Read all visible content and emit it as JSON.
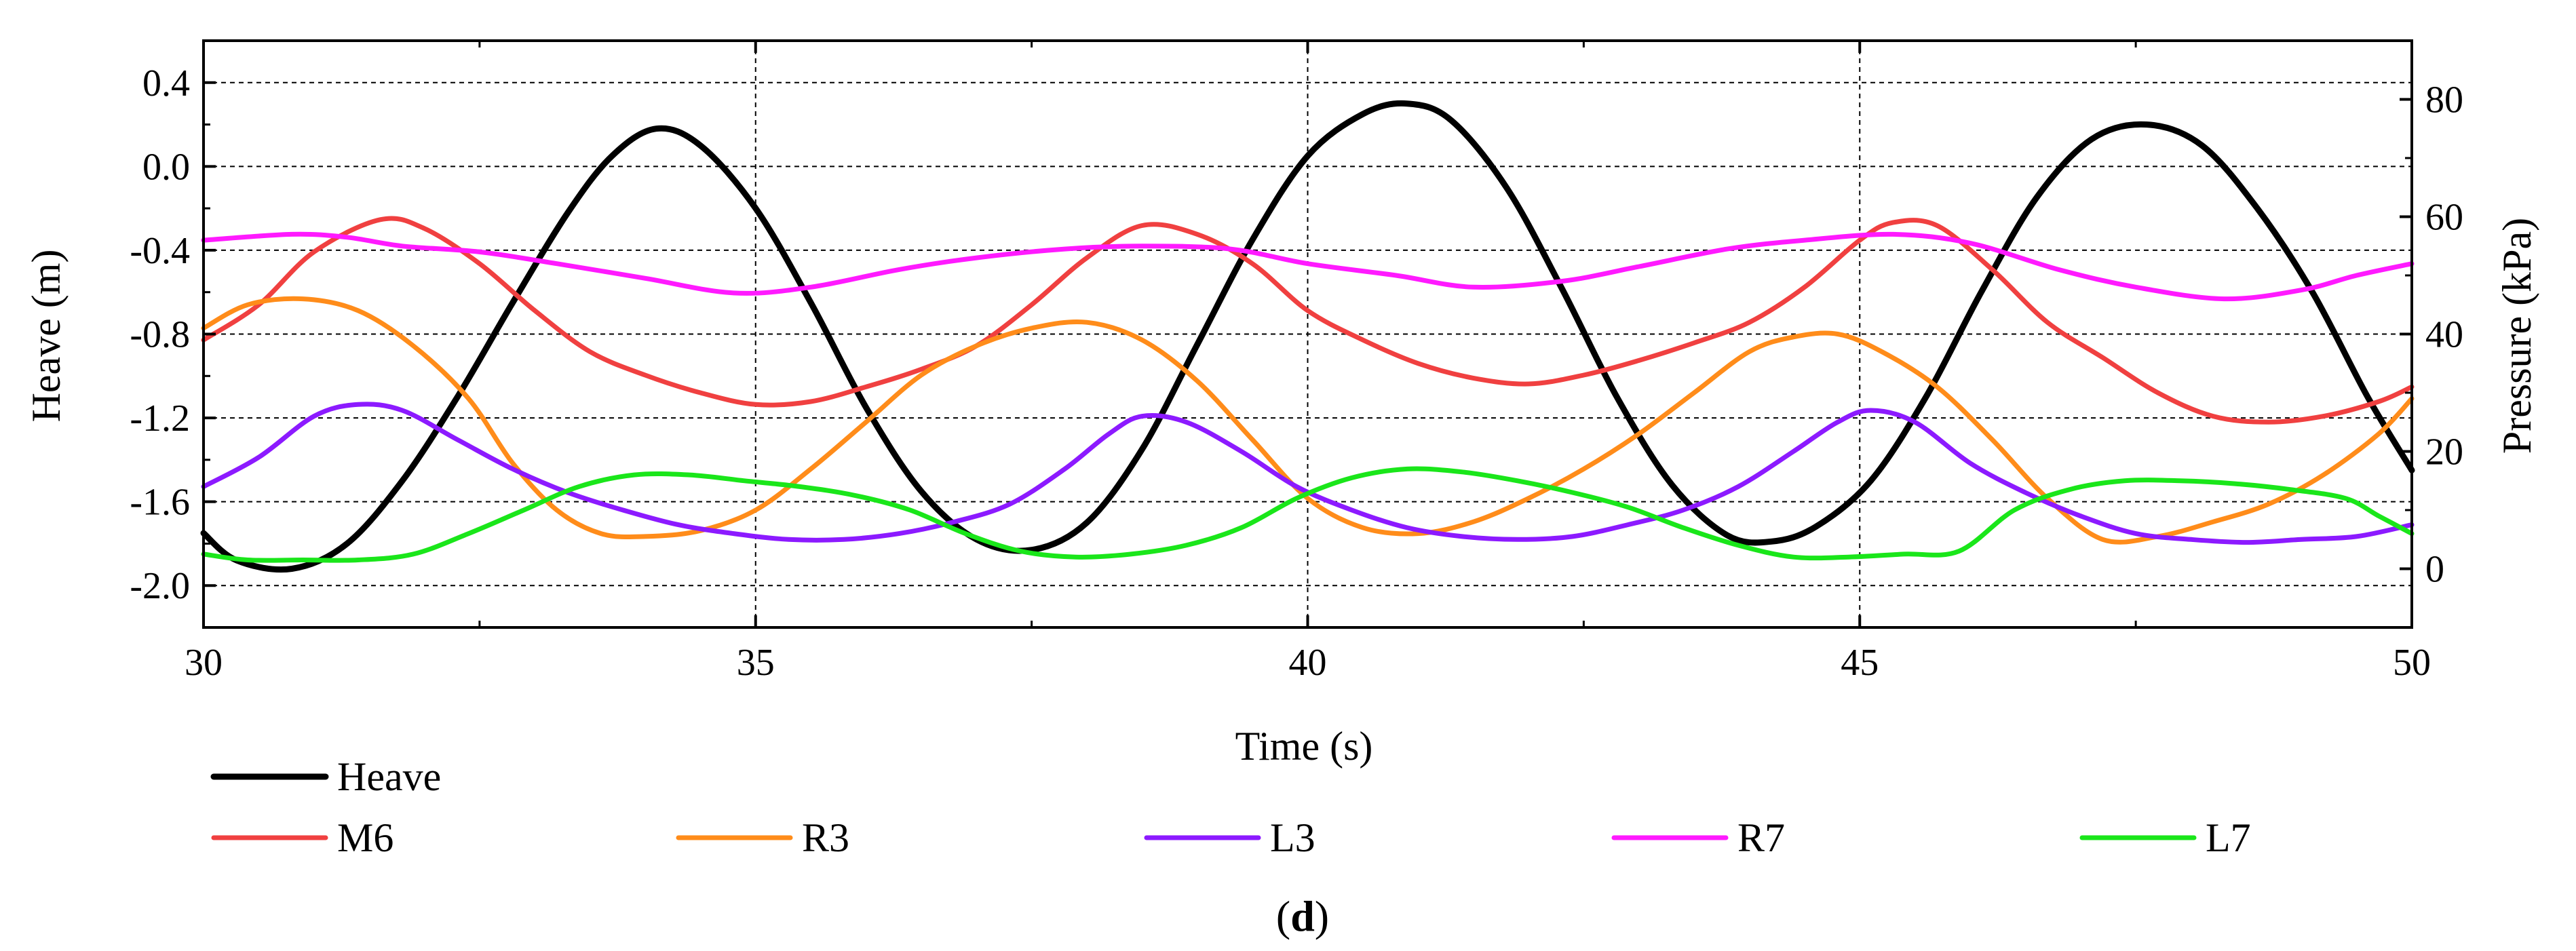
{
  "chart_data": {
    "type": "line",
    "panel_label": {
      "open": "(",
      "letter": "d",
      "close": ")"
    },
    "xlabel": "Time (s)",
    "ylabel_left": "Heave (m)",
    "ylabel_right": "Pressure (kPa)",
    "xlim": [
      30,
      50
    ],
    "ylim_left": [
      -2.2,
      0.6
    ],
    "ylim_right": [
      -10,
      90
    ],
    "x_ticks": [
      30,
      35,
      40,
      45,
      50
    ],
    "x_tick_labels": [
      "30",
      "35",
      "40",
      "45",
      "50"
    ],
    "y_left_ticks": [
      0.4,
      0.0,
      -0.4,
      -0.8,
      -1.2,
      -1.6,
      -2.0
    ],
    "y_left_tick_labels": [
      "0.4",
      "0.0",
      "-0.4",
      "-0.8",
      "-1.2",
      "-1.6",
      "-2.0"
    ],
    "y_right_ticks": [
      80,
      60,
      40,
      20,
      0
    ],
    "y_right_tick_labels": [
      "80",
      "60",
      "40",
      "20",
      "0"
    ],
    "grid": true,
    "legend_position": "bottom",
    "series": [
      {
        "name": "Heave",
        "axis": "left",
        "color": "#000000",
        "x": [
          30,
          30.3,
          30.8,
          31.3,
          31.8,
          32.3,
          32.8,
          33.3,
          33.7,
          34.1,
          34.5,
          35.0,
          35.5,
          36.0,
          36.5,
          37.0,
          37.5,
          38.0,
          38.5,
          39.0,
          39.5,
          40.0,
          40.5,
          40.9,
          41.3,
          41.8,
          42.3,
          42.8,
          43.3,
          43.8,
          44.2,
          44.6,
          45.1,
          45.6,
          46.1,
          46.6,
          47.1,
          47.6,
          48.1,
          48.6,
          49.1,
          49.6,
          50.0
        ],
        "y": [
          -1.75,
          -1.88,
          -1.92,
          -1.8,
          -1.5,
          -1.1,
          -0.65,
          -0.22,
          0.05,
          0.18,
          0.1,
          -0.2,
          -0.65,
          -1.15,
          -1.55,
          -1.78,
          -1.83,
          -1.7,
          -1.35,
          -0.85,
          -0.35,
          0.05,
          0.25,
          0.3,
          0.22,
          -0.1,
          -0.58,
          -1.1,
          -1.52,
          -1.76,
          -1.79,
          -1.72,
          -1.5,
          -1.1,
          -0.6,
          -0.15,
          0.13,
          0.2,
          0.1,
          -0.2,
          -0.6,
          -1.1,
          -1.45
        ]
      },
      {
        "name": "M6",
        "axis": "right",
        "color": "#f04040",
        "x": [
          30,
          30.5,
          31.0,
          31.6,
          32.0,
          32.5,
          33.0,
          33.5,
          34.0,
          34.5,
          35.0,
          35.5,
          36.0,
          36.5,
          37.0,
          37.5,
          38.0,
          38.5,
          39.0,
          39.5,
          40.0,
          40.5,
          41.0,
          41.5,
          42.0,
          42.5,
          43.0,
          43.5,
          44.0,
          44.5,
          45.0,
          45.3,
          45.7,
          46.2,
          46.7,
          47.2,
          47.7,
          48.2,
          48.7,
          49.2,
          49.7,
          50.0
        ],
        "y": [
          39,
          45,
          54,
          59.5,
          58,
          52,
          44,
          37,
          33,
          30,
          28,
          28.5,
          31,
          34,
          38,
          45,
          53,
          58.5,
          57,
          52,
          44,
          39,
          35,
          32.5,
          31.5,
          33,
          35.5,
          38.5,
          42,
          48,
          56,
          59,
          58.5,
          51,
          42,
          36,
          30,
          26,
          25,
          26,
          28.5,
          31
        ]
      },
      {
        "name": "R3",
        "axis": "right",
        "color": "#ff8c1a",
        "x": [
          30,
          30.4,
          30.9,
          31.4,
          31.9,
          32.4,
          32.8,
          33.2,
          33.6,
          34.0,
          34.5,
          35.0,
          35.5,
          36.0,
          36.5,
          37.0,
          37.5,
          38.0,
          38.5,
          39.0,
          39.5,
          40.0,
          40.5,
          41.0,
          41.5,
          42.0,
          42.5,
          43.0,
          43.5,
          44.0,
          44.4,
          44.8,
          45.2,
          45.7,
          46.2,
          46.7,
          47.2,
          47.7,
          48.2,
          48.7,
          49.2,
          49.7,
          50.0
        ],
        "y": [
          41,
          45,
          46,
          44,
          38,
          29,
          18,
          10,
          6,
          5.5,
          6.5,
          10,
          17,
          25,
          33,
          38,
          41,
          42,
          39,
          32,
          22,
          12,
          7,
          6,
          8,
          12,
          17,
          23,
          30,
          37,
          39.5,
          40,
          37,
          31,
          22,
          12,
          5,
          5.5,
          8,
          11,
          16,
          23,
          29
        ]
      },
      {
        "name": "L3",
        "axis": "right",
        "color": "#8c1aff",
        "x": [
          30,
          30.5,
          31.0,
          31.4,
          31.8,
          32.3,
          32.8,
          33.3,
          33.8,
          34.3,
          34.8,
          35.3,
          35.8,
          36.3,
          36.8,
          37.3,
          37.8,
          38.2,
          38.5,
          38.9,
          39.4,
          39.9,
          40.4,
          40.9,
          41.4,
          41.9,
          42.4,
          42.9,
          43.4,
          43.9,
          44.4,
          44.8,
          45.1,
          45.5,
          46.0,
          46.5,
          47.0,
          47.5,
          48.0,
          48.5,
          49.0,
          49.5,
          50.0
        ],
        "y": [
          14,
          19,
          26,
          28,
          27,
          22,
          17,
          13,
          10,
          7.5,
          6,
          5,
          5,
          6,
          8,
          11,
          17,
          23,
          26,
          25,
          20,
          14,
          10,
          7,
          5.5,
          5,
          5.5,
          7.5,
          10,
          14,
          20,
          25,
          27,
          25,
          18,
          13,
          9,
          6,
          5,
          4.5,
          5,
          5.5,
          7.5
        ]
      },
      {
        "name": "R7",
        "axis": "right",
        "color": "#ff1aff",
        "x": [
          30,
          30.8,
          31.3,
          31.8,
          32.5,
          33.2,
          34.0,
          34.8,
          35.5,
          36.3,
          37.0,
          37.8,
          38.5,
          39.3,
          40.0,
          40.8,
          41.5,
          42.3,
          43.0,
          43.8,
          44.5,
          45.3,
          46.0,
          46.8,
          47.5,
          48.3,
          49.0,
          49.5,
          50.0
        ],
        "y": [
          56,
          57,
          56.5,
          55,
          54,
          52,
          49.5,
          47,
          48,
          51,
          53,
          54.5,
          55,
          54.5,
          52,
          50,
          48,
          49,
          51.5,
          54.5,
          56,
          57,
          55.5,
          51,
          48,
          46,
          47.5,
          50,
          52
        ]
      },
      {
        "name": "L7",
        "axis": "right",
        "color": "#1ae61a",
        "x": [
          30,
          30.4,
          30.9,
          31.4,
          31.9,
          32.4,
          32.9,
          33.4,
          33.9,
          34.4,
          34.9,
          35.4,
          35.9,
          36.4,
          36.9,
          37.4,
          37.9,
          38.4,
          38.9,
          39.4,
          39.9,
          40.4,
          40.9,
          41.4,
          41.9,
          42.4,
          42.9,
          43.4,
          43.9,
          44.4,
          44.9,
          45.4,
          45.9,
          46.4,
          46.9,
          47.4,
          47.9,
          48.4,
          48.9,
          49.4,
          49.7,
          50.0
        ],
        "y": [
          2.5,
          1.5,
          1.5,
          1.5,
          2.5,
          6,
          10,
          14,
          16,
          16,
          15,
          14,
          12.5,
          10,
          6,
          3,
          2,
          2.5,
          4,
          7,
          12,
          15.5,
          17,
          16.5,
          15,
          13,
          10.5,
          7,
          4,
          2,
          2,
          2.5,
          3,
          10,
          13.5,
          15,
          15,
          14.5,
          13.5,
          12,
          9,
          6
        ]
      }
    ]
  }
}
